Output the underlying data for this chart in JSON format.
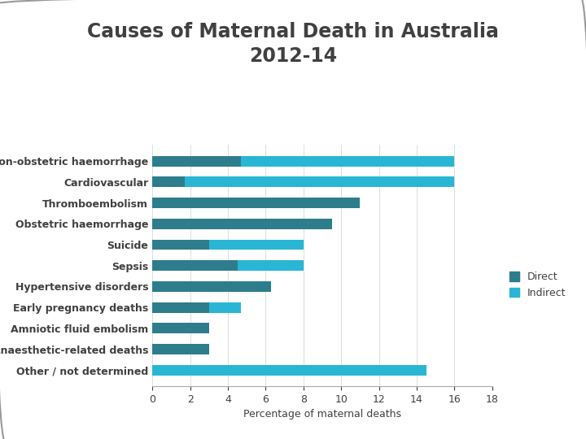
{
  "title": "Causes of Maternal Death in Australia\n2012-14",
  "categories": [
    "Non-obstetric haemorrhage",
    "Cardiovascular",
    "Thromboembolism",
    "Obstetric haemorrhage",
    "Suicide",
    "Sepsis",
    "Hypertensive disorders",
    "Early pregnancy deaths",
    "Amniotic fluid embolism",
    "Anaesthetic-related deaths",
    "Other / not determined"
  ],
  "direct": [
    4.7,
    1.7,
    11.0,
    9.5,
    3.0,
    4.5,
    6.3,
    3.0,
    3.0,
    3.0,
    0.0
  ],
  "indirect": [
    11.3,
    14.3,
    0.0,
    0.0,
    5.0,
    3.5,
    0.0,
    1.7,
    0.0,
    0.0,
    14.5
  ],
  "direct_color": "#2e7d8c",
  "indirect_color": "#29b6d4",
  "xlabel": "Percentage of maternal deaths",
  "xlim": [
    0,
    18
  ],
  "xticks": [
    0,
    2,
    4,
    6,
    8,
    10,
    12,
    14,
    16,
    18
  ],
  "legend_direct": "Direct",
  "legend_indirect": "Indirect",
  "title_fontsize": 17,
  "label_fontsize": 9,
  "tick_fontsize": 9,
  "bg_color": "#ffffff",
  "border_color": "#aaaaaa",
  "text_color": "#404040"
}
